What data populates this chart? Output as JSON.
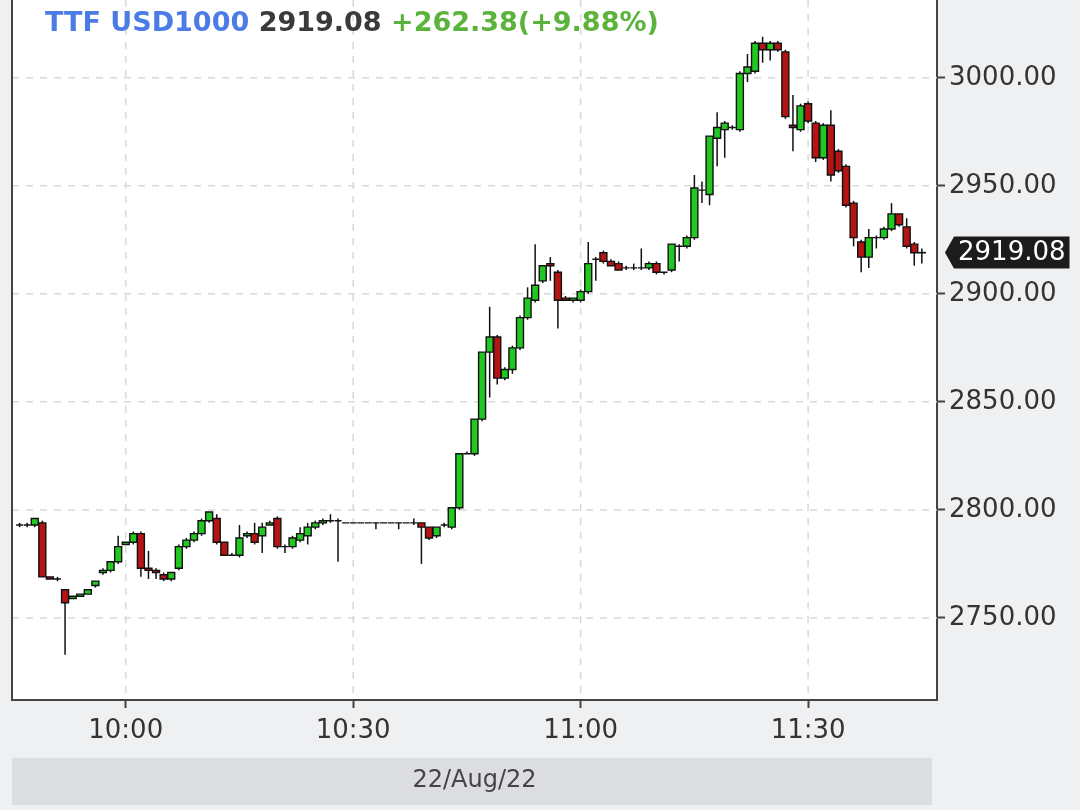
{
  "chart_data": {
    "type": "candlestick",
    "title": "TTF USD1000",
    "subtitle": "2919.08 +262.38(+9.88%)",
    "xlabel": "22/Aug/22",
    "x": [
      "--08-22T09:46",
      "--08-22T09:47",
      "--08-22T09:48",
      "--08-22T09:49",
      "--08-22T09:50",
      "--08-22T09:51",
      "--08-22T09:52",
      "--08-22T09:53",
      "--08-22T09:54",
      "--08-22T09:55",
      "--08-22T09:56",
      "--08-22T09:57",
      "--08-22T09:58",
      "--08-22T09:59",
      "--08-22T10:00",
      "--08-22T10:01",
      "--08-22T10:02",
      "--08-22T10:03",
      "--08-22T10:04",
      "--08-22T10:05",
      "--08-22T10:06",
      "--08-22T10:07",
      "--08-22T10:08",
      "--08-22T10:09",
      "--08-22T10:10",
      "--08-22T10:11",
      "--08-22T10:12",
      "--08-22T10:13",
      "--08-22T10:14",
      "--08-22T10:15",
      "--08-22T10:16",
      "--08-22T10:17",
      "--08-22T10:18",
      "--08-22T10:19",
      "--08-22T10:20",
      "--08-22T10:21",
      "--08-22T10:22",
      "--08-22T10:23",
      "--08-22T10:24",
      "--08-22T10:25",
      "--08-22T10:26",
      "--08-22T10:27",
      "--08-22T10:28",
      "--08-22T10:29",
      "--08-22T10:30",
      "--08-22T10:31",
      "--08-22T10:32",
      "--08-22T10:33",
      "--08-22T10:34",
      "--08-22T10:35",
      "--08-22T10:36",
      "--08-22T10:37",
      "--08-22T10:38",
      "--08-22T10:39",
      "--08-22T10:40",
      "--08-22T10:41",
      "--08-22T10:42",
      "--08-22T10:43",
      "--08-22T10:44",
      "--08-22T10:45",
      "--08-22T10:46",
      "--08-22T10:47",
      "--08-22T10:48",
      "--08-22T10:49",
      "--08-22T10:50",
      "--08-22T10:51",
      "--08-22T10:52",
      "--08-22T10:53",
      "--08-22T10:54",
      "--08-22T10:55",
      "--08-22T10:56",
      "--08-22T10:57",
      "--08-22T10:58",
      "--08-22T10:59",
      "--08-22T11:00",
      "--08-22T11:01",
      "--08-22T11:02",
      "--08-22T11:03",
      "--08-22T11:04",
      "--08-22T11:05",
      "--08-22T11:06",
      "--08-22T11:07",
      "--08-22T11:08",
      "--08-22T11:09",
      "--08-22T11:10",
      "--08-22T11:11",
      "--08-22T11:12",
      "--08-22T11:13",
      "--08-22T11:14",
      "--08-22T11:15",
      "--08-22T11:16",
      "--08-22T11:17",
      "--08-22T11:18",
      "--08-22T11:19",
      "--08-22T11:20",
      "--08-22T11:21",
      "--08-22T11:22",
      "--08-22T11:23",
      "--08-22T11:24",
      "--08-22T11:25",
      "--08-22T11:26",
      "--08-22T11:27",
      "--08-22T11:28",
      "--08-22T11:29",
      "--08-22T11:30",
      "--08-22T11:31",
      "--08-22T11:32",
      "--08-22T11:33",
      "--08-22T11:34",
      "--08-22T11:35",
      "--08-22T11:36",
      "--08-22T11:37",
      "--08-22T11:38",
      "--08-22T11:39",
      "--08-22T11:40",
      "--08-22T11:41",
      "--08-22T11:42",
      "--08-22T11:43",
      "--08-22T11:44",
      "--08-22T11:45"
    ],
    "ohlc": [
      [
        2793,
        2794,
        2792,
        2793
      ],
      [
        2793,
        2794,
        2792,
        2793
      ],
      [
        2793,
        2796,
        2792,
        2796
      ],
      [
        2794,
        2795,
        2769,
        2769
      ],
      [
        2769,
        2769,
        2768,
        2768
      ],
      [
        2768,
        2769,
        2767,
        2768
      ],
      [
        2763,
        2763,
        2733,
        2757
      ],
      [
        2759,
        2760,
        2759,
        2760
      ],
      [
        2760,
        2761,
        2760,
        2761
      ],
      [
        2761,
        2763,
        2761,
        2763
      ],
      [
        2765,
        2767,
        2764,
        2767
      ],
      [
        2771,
        2773,
        2770,
        2772
      ],
      [
        2772,
        2776,
        2771,
        2776
      ],
      [
        2776,
        2788,
        2775,
        2783
      ],
      [
        2784,
        2785,
        2784,
        2785
      ],
      [
        2785,
        2790,
        2784,
        2789
      ],
      [
        2789,
        2790,
        2769,
        2773
      ],
      [
        2773,
        2781,
        2768,
        2772
      ],
      [
        2772,
        2773,
        2768,
        2771
      ],
      [
        2770,
        2771,
        2767,
        2768
      ],
      [
        2768,
        2771,
        2767,
        2771
      ],
      [
        2773,
        2784,
        2772,
        2783
      ],
      [
        2783,
        2787,
        2782,
        2786
      ],
      [
        2786,
        2790,
        2785,
        2789
      ],
      [
        2789,
        2796,
        2788,
        2795
      ],
      [
        2795,
        2799,
        2794,
        2799
      ],
      [
        2796,
        2798,
        2784,
        2785
      ],
      [
        2785,
        2785,
        2779,
        2779
      ],
      [
        2779,
        2780,
        2779,
        2779
      ],
      [
        2779,
        2793,
        2778,
        2787
      ],
      [
        2788,
        2790,
        2787,
        2789
      ],
      [
        2789,
        2794,
        2784,
        2785
      ],
      [
        2788,
        2794,
        2780,
        2792
      ],
      [
        2793,
        2795,
        2793,
        2794
      ],
      [
        2796,
        2797,
        2782,
        2783
      ],
      [
        2783,
        2784,
        2780,
        2783
      ],
      [
        2783,
        2788,
        2782,
        2787
      ],
      [
        2786,
        2792,
        2785,
        2789
      ],
      [
        2788,
        2794,
        2784,
        2792
      ],
      [
        2792,
        2795,
        2791,
        2794
      ],
      [
        2794,
        2796,
        2793,
        2795
      ],
      [
        2795,
        2798,
        2794,
        2795
      ],
      [
        2795,
        2796,
        2776,
        2795
      ],
      [
        2794,
        2794,
        2794,
        2794
      ],
      [
        2794,
        2794,
        2794,
        2794
      ],
      [
        2794,
        2794,
        2794,
        2794
      ],
      [
        2794,
        2794,
        2794,
        2794
      ],
      [
        2794,
        2794,
        2791,
        2794
      ],
      [
        2794,
        2794,
        2794,
        2794
      ],
      [
        2794,
        2794,
        2794,
        2794
      ],
      [
        2794,
        2794,
        2791,
        2794
      ],
      [
        2794,
        2794,
        2794,
        2794
      ],
      [
        2794,
        2796,
        2793,
        2794
      ],
      [
        2794,
        2794,
        2775,
        2792
      ],
      [
        2792,
        2792,
        2786,
        2787
      ],
      [
        2788,
        2792,
        2787,
        2792
      ],
      [
        2793,
        2794,
        2792,
        2793
      ],
      [
        2792,
        2801,
        2791,
        2801
      ],
      [
        2801,
        2826,
        2800,
        2826
      ],
      [
        2826,
        2827,
        2826,
        2826
      ],
      [
        2826,
        2842,
        2825,
        2842
      ],
      [
        2842,
        2873,
        2841,
        2873
      ],
      [
        2873,
        2894,
        2852,
        2880
      ],
      [
        2880,
        2881,
        2858,
        2861
      ],
      [
        2861,
        2866,
        2860,
        2865
      ],
      [
        2865,
        2876,
        2863,
        2875
      ],
      [
        2875,
        2890,
        2874,
        2889
      ],
      [
        2889,
        2903,
        2888,
        2898
      ],
      [
        2897,
        2923,
        2896,
        2904
      ],
      [
        2906,
        2913,
        2905,
        2913
      ],
      [
        2914,
        2917,
        2906,
        2913
      ],
      [
        2910,
        2911,
        2884,
        2897
      ],
      [
        2898,
        2899,
        2897,
        2897
      ],
      [
        2897,
        2898,
        2896,
        2898
      ],
      [
        2897,
        2902,
        2896,
        2901
      ],
      [
        2901,
        2924,
        2900,
        2914
      ],
      [
        2916,
        2917,
        2906,
        2916
      ],
      [
        2919,
        2920,
        2914,
        2915
      ],
      [
        2915,
        2916,
        2913,
        2913
      ],
      [
        2914,
        2915,
        2911,
        2911
      ],
      [
        2912,
        2913,
        2911,
        2912
      ],
      [
        2912,
        2914,
        2911,
        2912
      ],
      [
        2912,
        2921,
        2911,
        2912
      ],
      [
        2912,
        2915,
        2911,
        2914
      ],
      [
        2914,
        2915,
        2909,
        2910
      ],
      [
        2910,
        2910,
        2909,
        2910
      ],
      [
        2911,
        2923,
        2910,
        2923
      ],
      [
        2922,
        2923,
        2915,
        2922
      ],
      [
        2922,
        2927,
        2921,
        2926
      ],
      [
        2926,
        2955,
        2925,
        2949
      ],
      [
        2948,
        2952,
        2942,
        2948
      ],
      [
        2946,
        2973,
        2941,
        2973
      ],
      [
        2972,
        2984,
        2959,
        2977
      ],
      [
        2976,
        2980,
        2963,
        2979
      ],
      [
        2977,
        2978,
        2976,
        2977
      ],
      [
        2976,
        3003,
        2975,
        3002
      ],
      [
        3002,
        3011,
        2998,
        3005
      ],
      [
        3003,
        3017,
        3002,
        3016
      ],
      [
        3016,
        3019,
        3007,
        3013
      ],
      [
        3013,
        3017,
        3008,
        3016
      ],
      [
        3016,
        3017,
        3012,
        3013
      ],
      [
        3012,
        3013,
        2981,
        2982
      ],
      [
        2978,
        2992,
        2966,
        2977
      ],
      [
        2976,
        2988,
        2975,
        2987
      ],
      [
        2988,
        2989,
        2979,
        2980
      ],
      [
        2979,
        2980,
        2961,
        2963
      ],
      [
        2963,
        2979,
        2962,
        2978
      ],
      [
        2978,
        2985,
        2952,
        2955
      ],
      [
        2966,
        2967,
        2956,
        2957
      ],
      [
        2959,
        2960,
        2940,
        2941
      ],
      [
        2942,
        2943,
        2922,
        2926
      ],
      [
        2924,
        2925,
        2910,
        2917
      ],
      [
        2917,
        2930,
        2912,
        2926
      ],
      [
        2926,
        2927,
        2921,
        2926
      ],
      [
        2926,
        2931,
        2925,
        2930
      ],
      [
        2930,
        2942,
        2929,
        2937
      ],
      [
        2937,
        2937,
        2931,
        2932
      ],
      [
        2931,
        2935,
        2921,
        2922
      ],
      [
        2923,
        2924,
        2913,
        2919
      ],
      [
        2919,
        2921,
        2914,
        2919.08
      ]
    ],
    "colors": [
      "#111111",
      "#111111",
      "#22c822",
      "#b51414",
      "#b51414",
      "#111111",
      "#b51414",
      "#22c822",
      "#22c822",
      "#22c822",
      "#22c822",
      "#22c822",
      "#22c822",
      "#22c822",
      "#22c822",
      "#22c822",
      "#b51414",
      "#b51414",
      "#b51414",
      "#b51414",
      "#22c822",
      "#22c822",
      "#22c822",
      "#22c822",
      "#22c822",
      "#22c822",
      "#b51414",
      "#b51414",
      "#111111",
      "#22c822",
      "#22c822",
      "#b51414",
      "#22c822",
      "#22c822",
      "#b51414",
      "#111111",
      "#22c822",
      "#22c822",
      "#22c822",
      "#22c822",
      "#22c822",
      "#111111",
      "#111111",
      "#111111",
      "#111111",
      "#111111",
      "#111111",
      "#111111",
      "#111111",
      "#111111",
      "#111111",
      "#111111",
      "#111111",
      "#b51414",
      "#b51414",
      "#22c822",
      "#111111",
      "#22c822",
      "#22c822",
      "#111111",
      "#22c822",
      "#22c822",
      "#22c822",
      "#b51414",
      "#22c822",
      "#22c822",
      "#22c822",
      "#22c822",
      "#22c822",
      "#22c822",
      "#b51414",
      "#b51414",
      "#b51414",
      "#22c822",
      "#22c822",
      "#22c822",
      "#111111",
      "#b51414",
      "#b51414",
      "#b51414",
      "#111111",
      "#111111",
      "#111111",
      "#22c822",
      "#b51414",
      "#111111",
      "#22c822",
      "#111111",
      "#22c822",
      "#22c822",
      "#111111",
      "#22c822",
      "#22c822",
      "#22c822",
      "#111111",
      "#22c822",
      "#22c822",
      "#22c822",
      "#b51414",
      "#22c822",
      "#b51414",
      "#b51414",
      "#b51414",
      "#22c822",
      "#b51414",
      "#b51414",
      "#22c822",
      "#b51414",
      "#b51414",
      "#b51414",
      "#b51414",
      "#b51414",
      "#22c822",
      "#111111",
      "#22c822",
      "#22c822",
      "#b51414",
      "#b51414",
      "#b51414",
      "#111111"
    ],
    "xlim": [
      "--08-22T09:45",
      "--08-22T11:47"
    ],
    "ylim": [
      2712,
      3036
    ],
    "xticks": [
      {
        "value": "--08-22T10:00",
        "label": "10:00"
      },
      {
        "value": "--08-22T10:30",
        "label": "10:30"
      },
      {
        "value": "--08-22T11:00",
        "label": "11:00"
      },
      {
        "value": "--08-22T11:30",
        "label": "11:30"
      }
    ],
    "yticks": [
      {
        "value": 2750,
        "label": "2750.00"
      },
      {
        "value": 2800,
        "label": "2800.00"
      },
      {
        "value": 2850,
        "label": "2850.00"
      },
      {
        "value": 2900,
        "label": "2900.00"
      },
      {
        "value": 2950,
        "label": "2950.00"
      },
      {
        "value": 3000,
        "label": "3000.00"
      }
    ],
    "grid": true,
    "annotations": [
      "2919.08"
    ]
  }
}
